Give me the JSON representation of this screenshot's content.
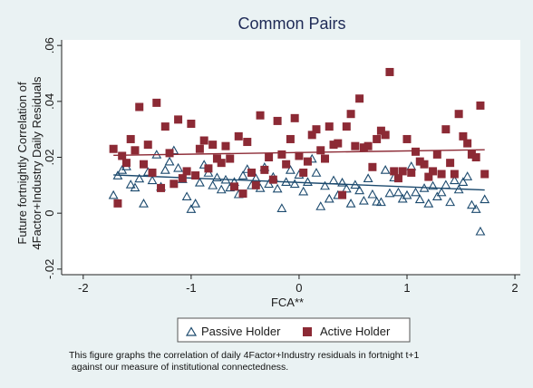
{
  "chart_data": {
    "type": "scatter",
    "title": "Common Pairs",
    "xlabel": "FCA**",
    "ylabel": "Future fortnightly Correlation of 4Factor+Industry Daily Residuals",
    "ylabel_lines": [
      "Future fortnightly Correlation of",
      "4Factor+Industry Daily Residuals"
    ],
    "xlim": [
      -2.2,
      2.05
    ],
    "ylim": [
      -0.022,
      0.062
    ],
    "xticks": [
      -2,
      -1,
      0,
      1,
      2
    ],
    "xtick_labels": [
      "-2",
      "-1",
      "0",
      "1",
      "2"
    ],
    "yticks": [
      -0.02,
      0,
      0.02,
      0.04,
      0.06
    ],
    "ytick_labels": [
      "-.02",
      "0",
      ".02",
      ".04",
      ".06"
    ],
    "grid": false,
    "legend_position": "bottom",
    "series": [
      {
        "name": "Passive Holder",
        "marker": "hollow-triangle",
        "color": "#1c4a6e",
        "fit_line": {
          "x": [
            -1.72,
            1.72
          ],
          "y": [
            0.0137,
            0.0083
          ]
        },
        "points": [
          [
            -1.72,
            0.0065
          ],
          [
            -1.68,
            0.0135
          ],
          [
            -1.64,
            0.0155
          ],
          [
            -1.6,
            0.0168
          ],
          [
            -1.56,
            0.0103
          ],
          [
            -1.52,
            0.0092
          ],
          [
            -1.48,
            0.0124
          ],
          [
            -1.44,
            0.0035
          ],
          [
            -1.4,
            0.0148
          ],
          [
            -1.36,
            0.0118
          ],
          [
            -1.32,
            0.021
          ],
          [
            -1.28,
            0.0095
          ],
          [
            -1.24,
            0.0155
          ],
          [
            -1.2,
            0.0185
          ],
          [
            -1.16,
            0.0225
          ],
          [
            -1.12,
            0.0162
          ],
          [
            -1.08,
            0.0122
          ],
          [
            -1.04,
            0.006
          ],
          [
            -1.0,
            0.0015
          ],
          [
            -0.96,
            0.0035
          ],
          [
            -0.92,
            0.011
          ],
          [
            -0.88,
            0.0174
          ],
          [
            -0.84,
            0.0145
          ],
          [
            -0.8,
            0.01
          ],
          [
            -0.76,
            0.0128
          ],
          [
            -0.72,
            0.0085
          ],
          [
            -0.68,
            0.012
          ],
          [
            -0.64,
            0.0092
          ],
          [
            -0.6,
            0.0112
          ],
          [
            -0.56,
            0.0068
          ],
          [
            -0.52,
            0.0135
          ],
          [
            -0.48,
            0.0158
          ],
          [
            -0.44,
            0.01
          ],
          [
            -0.4,
            0.0125
          ],
          [
            -0.36,
            0.009
          ],
          [
            -0.32,
            0.0165
          ],
          [
            -0.28,
            0.0105
          ],
          [
            -0.24,
            0.013
          ],
          [
            -0.2,
            0.0088
          ],
          [
            -0.16,
            0.0018
          ],
          [
            -0.12,
            0.0112
          ],
          [
            -0.08,
            0.0155
          ],
          [
            -0.04,
            0.0105
          ],
          [
            0.0,
            0.0138
          ],
          [
            0.04,
            0.0078
          ],
          [
            0.08,
            0.0112
          ],
          [
            0.12,
            0.0195
          ],
          [
            0.16,
            0.0145
          ],
          [
            0.2,
            0.0025
          ],
          [
            0.24,
            0.0098
          ],
          [
            0.28,
            0.0052
          ],
          [
            0.32,
            0.0118
          ],
          [
            0.36,
            0.0065
          ],
          [
            0.4,
            0.011
          ],
          [
            0.44,
            0.0088
          ],
          [
            0.48,
            0.0035
          ],
          [
            0.52,
            0.0102
          ],
          [
            0.56,
            0.0082
          ],
          [
            0.6,
            0.0045
          ],
          [
            0.64,
            0.0125
          ],
          [
            0.68,
            0.0068
          ],
          [
            0.72,
            0.0042
          ],
          [
            0.76,
            0.004
          ],
          [
            0.8,
            0.0155
          ],
          [
            0.84,
            0.0072
          ],
          [
            0.88,
            0.0128
          ],
          [
            0.92,
            0.0075
          ],
          [
            0.96,
            0.0052
          ],
          [
            1.0,
            0.0065
          ],
          [
            1.04,
            0.0168
          ],
          [
            1.08,
            0.0075
          ],
          [
            1.12,
            0.005
          ],
          [
            1.16,
            0.009
          ],
          [
            1.2,
            0.0035
          ],
          [
            1.24,
            0.0098
          ],
          [
            1.28,
            0.006
          ],
          [
            1.32,
            0.0075
          ],
          [
            1.36,
            0.0102
          ],
          [
            1.4,
            0.004
          ],
          [
            1.44,
            0.0118
          ],
          [
            1.48,
            0.0085
          ],
          [
            1.52,
            0.0112
          ],
          [
            1.56,
            0.0132
          ],
          [
            1.6,
            0.003
          ],
          [
            1.64,
            0.0015
          ],
          [
            1.68,
            -0.0065
          ],
          [
            1.72,
            0.005
          ]
        ]
      },
      {
        "name": "Active Holder",
        "marker": "filled-square",
        "color": "#8c2a35",
        "fit_line": {
          "x": [
            -1.72,
            1.72
          ],
          "y": [
            0.0207,
            0.0227
          ]
        },
        "points": [
          [
            -1.72,
            0.023
          ],
          [
            -1.68,
            0.0035
          ],
          [
            -1.64,
            0.0205
          ],
          [
            -1.6,
            0.018
          ],
          [
            -1.56,
            0.0265
          ],
          [
            -1.52,
            0.0225
          ],
          [
            -1.48,
            0.038
          ],
          [
            -1.44,
            0.0175
          ],
          [
            -1.4,
            0.0245
          ],
          [
            -1.36,
            0.0145
          ],
          [
            -1.32,
            0.0395
          ],
          [
            -1.28,
            0.009
          ],
          [
            -1.24,
            0.031
          ],
          [
            -1.2,
            0.0215
          ],
          [
            -1.16,
            0.0105
          ],
          [
            -1.12,
            0.0335
          ],
          [
            -1.08,
            0.0125
          ],
          [
            -1.04,
            0.015
          ],
          [
            -1.0,
            0.032
          ],
          [
            -0.96,
            0.0135
          ],
          [
            -0.92,
            0.023
          ],
          [
            -0.88,
            0.026
          ],
          [
            -0.84,
            0.016
          ],
          [
            -0.8,
            0.0245
          ],
          [
            -0.76,
            0.0195
          ],
          [
            -0.72,
            0.018
          ],
          [
            -0.68,
            0.024
          ],
          [
            -0.64,
            0.0195
          ],
          [
            -0.6,
            0.0095
          ],
          [
            -0.56,
            0.0275
          ],
          [
            -0.52,
            0.007
          ],
          [
            -0.48,
            0.0255
          ],
          [
            -0.44,
            0.0145
          ],
          [
            -0.4,
            0.01
          ],
          [
            -0.36,
            0.035
          ],
          [
            -0.32,
            0.0155
          ],
          [
            -0.28,
            0.02
          ],
          [
            -0.24,
            0.012
          ],
          [
            -0.2,
            0.033
          ],
          [
            -0.16,
            0.021
          ],
          [
            -0.12,
            0.0175
          ],
          [
            -0.08,
            0.0265
          ],
          [
            -0.04,
            0.034
          ],
          [
            0.0,
            0.0205
          ],
          [
            0.04,
            0.0145
          ],
          [
            0.08,
            0.0185
          ],
          [
            0.12,
            0.028
          ],
          [
            0.16,
            0.03
          ],
          [
            0.2,
            0.0225
          ],
          [
            0.24,
            0.0195
          ],
          [
            0.28,
            0.031
          ],
          [
            0.32,
            0.0245
          ],
          [
            0.36,
            0.025
          ],
          [
            0.4,
            0.0065
          ],
          [
            0.44,
            0.031
          ],
          [
            0.48,
            0.0355
          ],
          [
            0.52,
            0.024
          ],
          [
            0.56,
            0.041
          ],
          [
            0.6,
            0.0235
          ],
          [
            0.64,
            0.024
          ],
          [
            0.68,
            0.0165
          ],
          [
            0.72,
            0.0265
          ],
          [
            0.76,
            0.0295
          ],
          [
            0.8,
            0.028
          ],
          [
            0.84,
            0.0505
          ],
          [
            0.88,
            0.015
          ],
          [
            0.92,
            0.0125
          ],
          [
            0.96,
            0.015
          ],
          [
            1.0,
            0.0265
          ],
          [
            1.04,
            0.0145
          ],
          [
            1.08,
            0.022
          ],
          [
            1.12,
            0.0185
          ],
          [
            1.16,
            0.0175
          ],
          [
            1.2,
            0.013
          ],
          [
            1.24,
            0.015
          ],
          [
            1.28,
            0.021
          ],
          [
            1.32,
            0.014
          ],
          [
            1.36,
            0.03
          ],
          [
            1.4,
            0.018
          ],
          [
            1.44,
            0.014
          ],
          [
            1.48,
            0.0355
          ],
          [
            1.52,
            0.0275
          ],
          [
            1.56,
            0.025
          ],
          [
            1.6,
            0.021
          ],
          [
            1.64,
            0.02
          ],
          [
            1.68,
            0.0385
          ],
          [
            1.72,
            0.014
          ]
        ]
      }
    ]
  },
  "legend": {
    "items": [
      {
        "label": "Passive Holder"
      },
      {
        "label": "Active Holder"
      }
    ]
  },
  "caption": {
    "line1": "This figure graphs the correlation of daily 4Factor+Industry residuals in fortnight t+1",
    "line2": " against our measure of institutional connectedness."
  }
}
